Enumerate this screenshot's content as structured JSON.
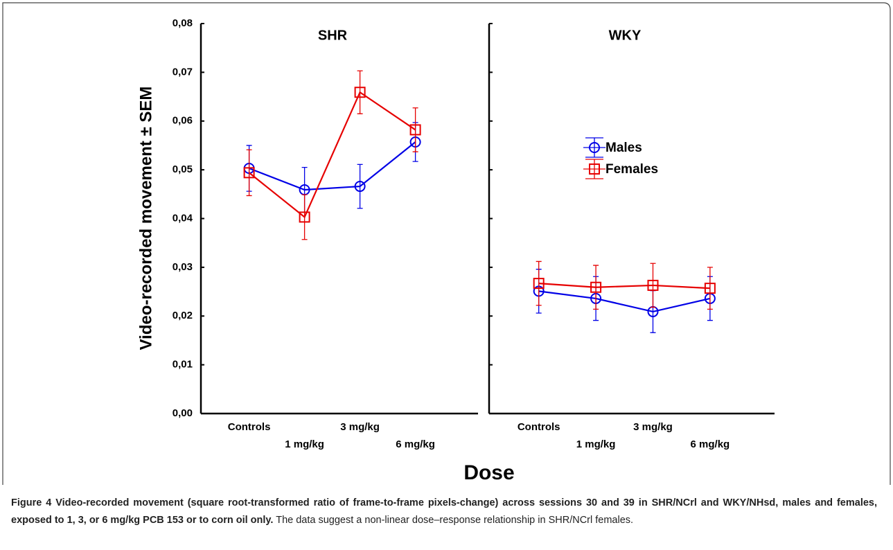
{
  "figure": {
    "ylabel": "Video-recorded movement ± SEM",
    "xlabel": "Dose",
    "caption_bold": "Figure 4 Video-recorded movement (square root-transformed ratio of frame-to-frame pixels-change) across sessions 30 and 39 in SHR/NCrl and WKY/NHsd, males and females, exposed to 1, 3, or 6 mg/kg PCB 153 or to corn oil only.",
    "caption_rest": "The data suggest a non-linear dose–response relationship in SHR/NCrl females."
  },
  "chart_data": [
    {
      "type": "line",
      "title": "SHR",
      "categories": [
        "Controls",
        "1 mg/kg",
        "3 mg/kg",
        "6 mg/kg"
      ],
      "series": [
        {
          "color": "#0000e6",
          "marker": "circle",
          "values": [
            0.0503,
            0.0459,
            0.0466,
            0.0557
          ],
          "errors": [
            0.0047,
            0.0046,
            0.0045,
            0.004
          ]
        },
        {
          "color": "#e60000",
          "marker": "square",
          "values": [
            0.0494,
            0.0403,
            0.0659,
            0.0582
          ],
          "errors": [
            0.0047,
            0.0046,
            0.0044,
            0.0045
          ]
        }
      ],
      "ylim": [
        0,
        0.08
      ],
      "yticks": [
        {
          "value": 0,
          "label": "0,00"
        },
        {
          "value": 0.01,
          "label": "0,01"
        },
        {
          "value": 0.02,
          "label": "0,02"
        },
        {
          "value": 0.03,
          "label": "0,03"
        },
        {
          "value": 0.04,
          "label": "0,04"
        },
        {
          "value": 0.05,
          "label": "0,05"
        },
        {
          "value": 0.06,
          "label": "0,06"
        },
        {
          "value": 0.07,
          "label": "0,07"
        },
        {
          "value": 0.08,
          "label": "0,08"
        }
      ],
      "legend": false
    },
    {
      "type": "line",
      "title": "WKY",
      "categories": [
        "Controls",
        "1 mg/kg",
        "3 mg/kg",
        "6 mg/kg"
      ],
      "series": [
        {
          "name": "Males",
          "color": "#0000e6",
          "marker": "circle",
          "values": [
            0.0251,
            0.0236,
            0.0209,
            0.0236
          ],
          "errors": [
            0.0045,
            0.0045,
            0.0043,
            0.0045
          ]
        },
        {
          "name": "Females",
          "color": "#e60000",
          "marker": "square",
          "values": [
            0.0267,
            0.0259,
            0.0263,
            0.0257
          ],
          "errors": [
            0.0045,
            0.0045,
            0.0045,
            0.0043
          ]
        }
      ],
      "ylim": [
        0,
        0.08
      ],
      "yticks": [
        0,
        0.01,
        0.02,
        0.03,
        0.04,
        0.05,
        0.06,
        0.07,
        0.08
      ],
      "legend": true
    }
  ]
}
